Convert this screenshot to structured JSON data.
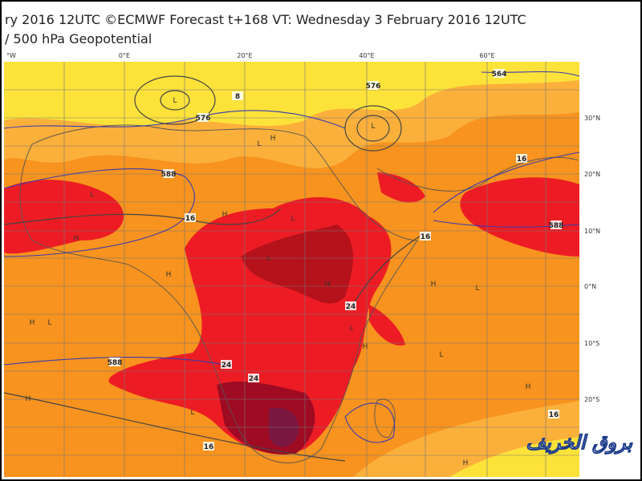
{
  "header": {
    "lines": [
      "ry 2016 12UTC ©ECMWF Forecast t+168 VT: Wednesday 3 February 2016 12UTC",
      "/ 500 hPa Geopotential"
    ]
  },
  "map": {
    "lon_labels": [
      "°W",
      "0°E",
      "20°E",
      "40°E",
      "60°E"
    ],
    "lat_labels": [
      "30°N",
      "20°N",
      "10°N",
      "0°N",
      "10°S",
      "20°S"
    ],
    "contour_labels": [
      "576",
      "8",
      "576",
      "564",
      "588",
      "16",
      "16",
      "16",
      "588",
      "24",
      "24",
      "24",
      "588",
      "16",
      "16"
    ],
    "pressure_centers": [
      "L",
      "L",
      "L",
      "H",
      "L",
      "H",
      "H",
      "L",
      "H",
      "L",
      "H",
      "L",
      "H",
      "L",
      "L",
      "H",
      "H",
      "L",
      "H",
      "L",
      "H",
      "H"
    ]
  },
  "watermark": "بروق الخريف"
}
